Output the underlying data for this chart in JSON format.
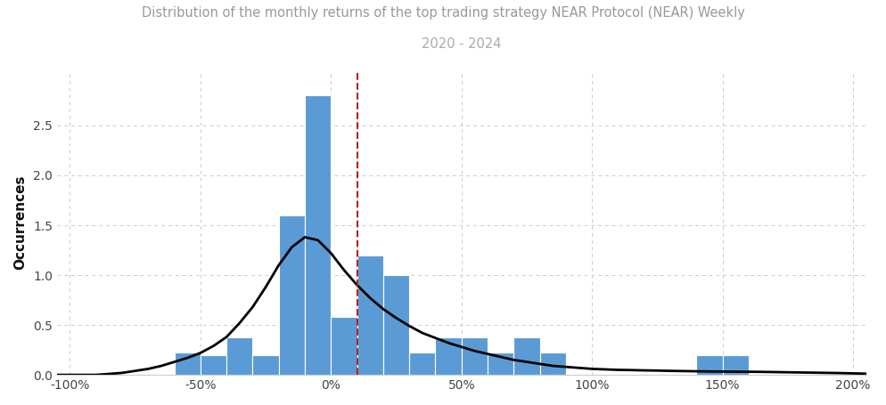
{
  "title_line1": "Distribution of the monthly returns of the top trading strategy NEAR Protocol (NEAR) Weekly",
  "title_line2": "2020 - 2024",
  "ylabel": "Occurrences",
  "background_color": "#ffffff",
  "bar_color": "#5b9bd5",
  "bar_edge_color": "#ffffff",
  "kde_color": "#000000",
  "dashed_line_color": "#b22222",
  "dashed_line_x": 0.1,
  "xlim": [
    -1.05,
    2.05
  ],
  "ylim": [
    0.0,
    3.05
  ],
  "xticks": [
    -1.0,
    -0.5,
    0.0,
    0.5,
    1.0,
    1.5,
    2.0
  ],
  "xtick_labels": [
    "-100%",
    "-50%",
    "0%",
    "50%",
    "100%",
    "150%",
    "200%"
  ],
  "yticks": [
    0.0,
    0.5,
    1.0,
    1.5,
    2.0,
    2.5
  ],
  "grid_color": "#cccccc",
  "tick_fontsize": 10,
  "ylabel_fontsize": 11,
  "title_color": "#999999",
  "subtitle_color": "#aaaaaa",
  "title_fontsize": 10.5,
  "subtitle_fontsize": 10.5,
  "bar_lefts": [
    -0.6,
    -0.5,
    -0.4,
    -0.3,
    -0.2,
    -0.1,
    0.0,
    0.1,
    0.2,
    0.3,
    0.4,
    0.5,
    0.6,
    0.7,
    0.8,
    1.4,
    1.5
  ],
  "bar_widths": [
    0.1,
    0.1,
    0.1,
    0.1,
    0.1,
    0.1,
    0.1,
    0.1,
    0.1,
    0.1,
    0.1,
    0.1,
    0.1,
    0.1,
    0.1,
    0.1,
    0.1
  ],
  "bar_heights": [
    0.22,
    0.2,
    0.38,
    0.2,
    1.6,
    2.8,
    0.58,
    1.2,
    1.0,
    0.22,
    0.38,
    0.38,
    0.22,
    0.38,
    0.22,
    0.2,
    0.2
  ],
  "kde_x": [
    -1.05,
    -1.0,
    -0.95,
    -0.9,
    -0.85,
    -0.8,
    -0.75,
    -0.7,
    -0.65,
    -0.6,
    -0.55,
    -0.5,
    -0.45,
    -0.4,
    -0.35,
    -0.3,
    -0.25,
    -0.2,
    -0.15,
    -0.1,
    -0.05,
    0.0,
    0.05,
    0.1,
    0.15,
    0.2,
    0.25,
    0.3,
    0.35,
    0.4,
    0.45,
    0.5,
    0.55,
    0.6,
    0.65,
    0.7,
    0.75,
    0.8,
    0.85,
    0.9,
    0.95,
    1.0,
    1.05,
    1.1,
    1.15,
    1.2,
    1.25,
    1.3,
    1.35,
    1.4,
    1.45,
    1.5,
    1.55,
    1.6,
    1.65,
    1.7,
    1.75,
    1.8,
    1.85,
    1.9,
    1.95,
    2.0,
    2.05
  ],
  "kde_y": [
    0.0,
    0.0,
    0.0,
    0.0,
    0.01,
    0.02,
    0.04,
    0.06,
    0.09,
    0.13,
    0.17,
    0.22,
    0.29,
    0.38,
    0.52,
    0.68,
    0.88,
    1.1,
    1.28,
    1.38,
    1.35,
    1.22,
    1.05,
    0.9,
    0.77,
    0.66,
    0.57,
    0.49,
    0.42,
    0.37,
    0.32,
    0.28,
    0.24,
    0.21,
    0.18,
    0.15,
    0.13,
    0.11,
    0.09,
    0.08,
    0.07,
    0.06,
    0.055,
    0.05,
    0.048,
    0.045,
    0.043,
    0.04,
    0.038,
    0.036,
    0.034,
    0.033,
    0.032,
    0.031,
    0.03,
    0.028,
    0.026,
    0.024,
    0.022,
    0.02,
    0.018,
    0.015,
    0.012
  ]
}
